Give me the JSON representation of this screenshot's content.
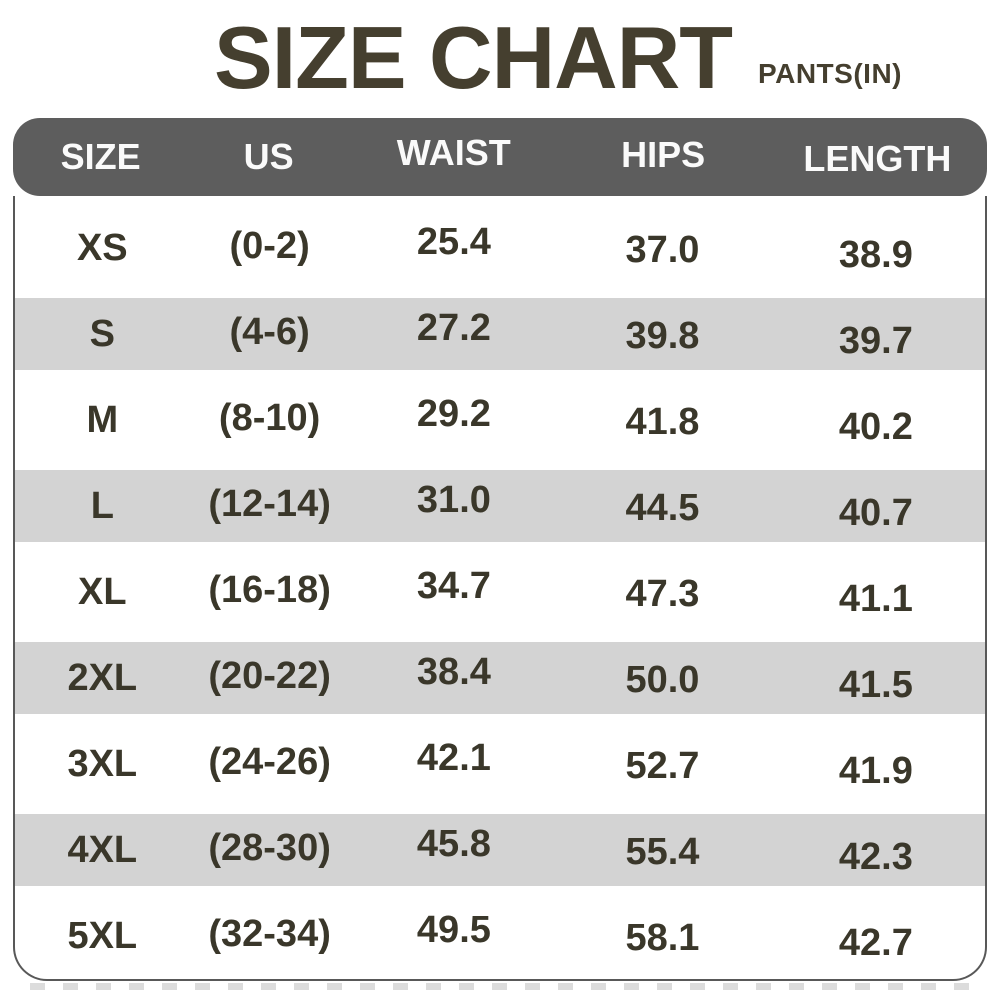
{
  "title": {
    "text": "SIZE CHART",
    "unit_label": "PANTS(IN)"
  },
  "chart_data": {
    "type": "table",
    "title": "SIZE CHART PANTS(IN)",
    "columns": [
      "SIZE",
      "US",
      "WAIST",
      "HIPS",
      "LENGTH"
    ],
    "rows": [
      [
        "XS",
        "(0-2)",
        "25.4",
        "37.0",
        "38.9"
      ],
      [
        "S",
        "(4-6)",
        "27.2",
        "39.8",
        "39.7"
      ],
      [
        "M",
        "(8-10)",
        "29.2",
        "41.8",
        "40.2"
      ],
      [
        "L",
        "(12-14)",
        "31.0",
        "44.5",
        "40.7"
      ],
      [
        "XL",
        "(16-18)",
        "34.7",
        "47.3",
        "41.1"
      ],
      [
        "2XL",
        "(20-22)",
        "38.4",
        "50.0",
        "41.5"
      ],
      [
        "3XL",
        "(24-26)",
        "42.1",
        "52.7",
        "41.9"
      ],
      [
        "4XL",
        "(28-30)",
        "45.8",
        "55.4",
        "42.3"
      ],
      [
        "5XL",
        "(32-34)",
        "49.5",
        "58.1",
        "42.7"
      ]
    ],
    "layout": {
      "striped_rows": "even rows (S, L, 2XL, 4XL) shaded",
      "header_position": "top"
    }
  },
  "colors": {
    "title_text": "#453f2f",
    "header_bg": "#5d5d5d",
    "header_text": "#fafafa",
    "stripe_bg": "#d3d3d3",
    "body_text": "#3a372a",
    "table_border": "#585858",
    "dash_decor": "#dcdcdc",
    "page_bg": "#ffffff"
  }
}
